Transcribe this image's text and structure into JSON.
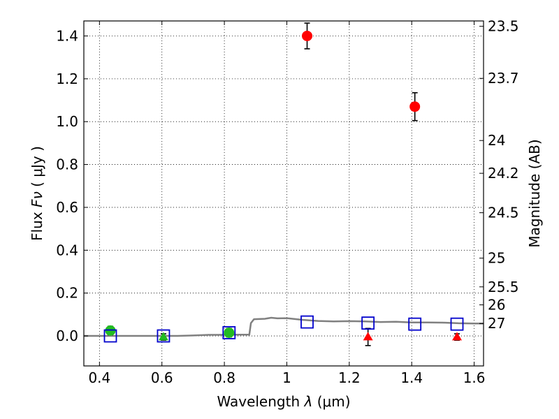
{
  "chart_data": {
    "type": "scatter",
    "xlabel_prefix": "Wavelength",
    "xlabel_symbol": "λ",
    "xlabel_unit": "(μm)",
    "ylabel_prefix": "Flux",
    "ylabel_symbol": "Fν",
    "ylabel_unit": "( μJy )",
    "ylabel_right": "Magnitude (AB)",
    "xlim": [
      0.35,
      1.63
    ],
    "ylim": [
      -0.14,
      1.47
    ],
    "grid": true,
    "x_ticks": [
      {
        "value": 0.4,
        "label": "0.4"
      },
      {
        "value": 0.6,
        "label": "0.6"
      },
      {
        "value": 0.8,
        "label": "0.8"
      },
      {
        "value": 1.0,
        "label": "1"
      },
      {
        "value": 1.2,
        "label": "1.2"
      },
      {
        "value": 1.4,
        "label": "1.4"
      },
      {
        "value": 1.6,
        "label": "1.6"
      }
    ],
    "y_ticks": [
      {
        "value": 0.0,
        "label": "0.0"
      },
      {
        "value": 0.2,
        "label": "0.2"
      },
      {
        "value": 0.4,
        "label": "0.4"
      },
      {
        "value": 0.6,
        "label": "0.6"
      },
      {
        "value": 0.8,
        "label": "0.8"
      },
      {
        "value": 1.0,
        "label": "1.0"
      },
      {
        "value": 1.2,
        "label": "1.2"
      },
      {
        "value": 1.4,
        "label": "1.4"
      }
    ],
    "y_right_ticks": [
      {
        "label": "23.5",
        "flux": 1.445
      },
      {
        "label": "23.7",
        "flux": 1.202
      },
      {
        "label": "24",
        "flux": 0.912
      },
      {
        "label": "24.2",
        "flux": 0.759
      },
      {
        "label": "24.5",
        "flux": 0.575
      },
      {
        "label": "25",
        "flux": 0.363
      },
      {
        "label": "25.5",
        "flux": 0.229
      },
      {
        "label": "26",
        "flux": 0.145
      },
      {
        "label": "27",
        "flux": 0.058
      }
    ],
    "series": [
      {
        "marker": "circle",
        "color": "#ff0000",
        "points": [
          {
            "x": 1.065,
            "y": 1.4,
            "err": 0.06
          },
          {
            "x": 1.41,
            "y": 1.07,
            "err": 0.065
          }
        ]
      },
      {
        "marker": "circle",
        "color": "#22bb22",
        "points": [
          {
            "x": 0.435,
            "y": 0.025,
            "err": 0.02
          },
          {
            "x": 0.815,
            "y": 0.015,
            "err": 0.02
          }
        ]
      },
      {
        "marker": "triangle",
        "color": "#22bb22",
        "points": [
          {
            "x": 0.605,
            "y": -0.005,
            "err": 0.015
          }
        ]
      },
      {
        "marker": "triangle",
        "color": "#ff0000",
        "points": [
          {
            "x": 1.26,
            "y": -0.005,
            "err": 0.04
          },
          {
            "x": 1.545,
            "y": -0.005,
            "err": 0.015
          }
        ]
      },
      {
        "marker": "square",
        "color": "#0000cc",
        "points": [
          {
            "x": 0.435,
            "y": 0.0
          },
          {
            "x": 0.605,
            "y": 0.0
          },
          {
            "x": 0.815,
            "y": 0.015
          },
          {
            "x": 1.065,
            "y": 0.065
          },
          {
            "x": 1.26,
            "y": 0.06
          },
          {
            "x": 1.41,
            "y": 0.055
          },
          {
            "x": 1.545,
            "y": 0.055
          }
        ]
      }
    ],
    "model_sed": {
      "color": "#808080",
      "x": [
        0.35,
        0.45,
        0.55,
        0.65,
        0.7,
        0.75,
        0.78,
        0.85,
        0.88,
        0.885,
        0.895,
        0.93,
        0.95,
        0.97,
        1.0,
        1.05,
        1.1,
        1.15,
        1.2,
        1.25,
        1.3,
        1.35,
        1.4,
        1.45,
        1.5,
        1.55,
        1.6,
        1.63
      ],
      "y": [
        0.0,
        0.0,
        0.0,
        0.0,
        0.002,
        0.005,
        0.005,
        0.006,
        0.006,
        0.06,
        0.078,
        0.08,
        0.085,
        0.082,
        0.083,
        0.075,
        0.07,
        0.068,
        0.069,
        0.068,
        0.065,
        0.066,
        0.063,
        0.063,
        0.062,
        0.059,
        0.058,
        0.058
      ]
    }
  }
}
